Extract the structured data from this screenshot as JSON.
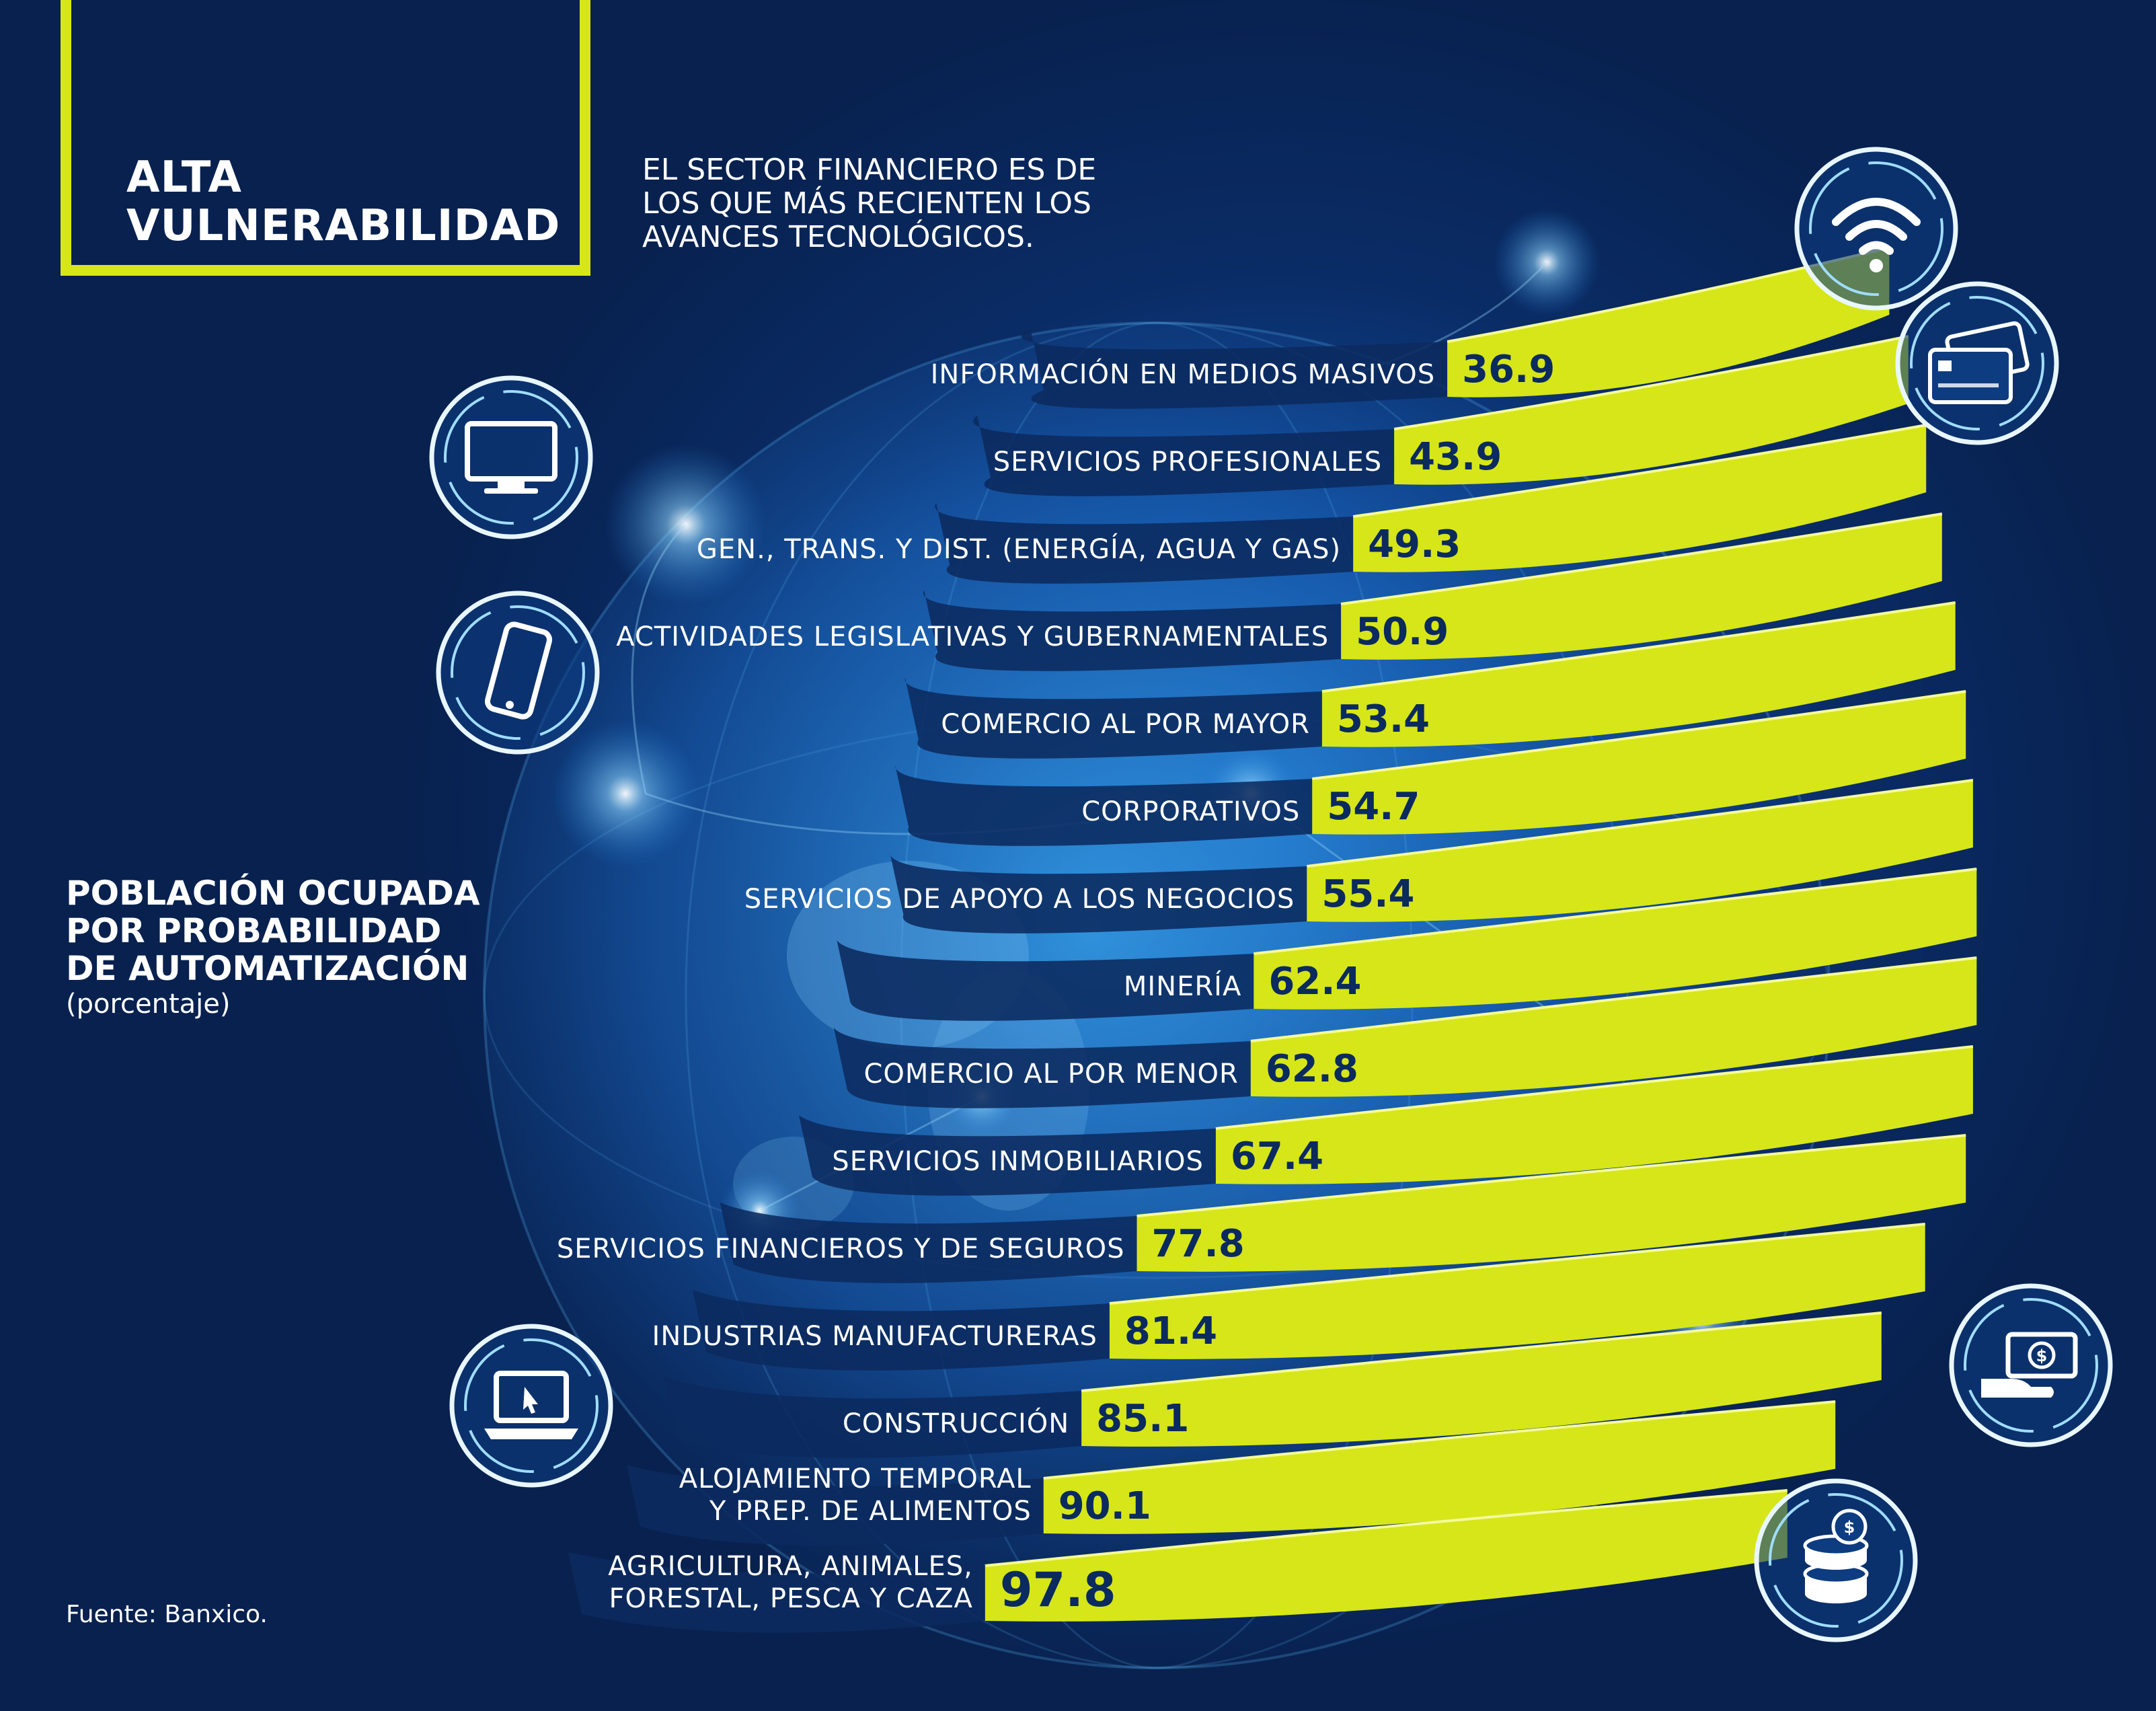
{
  "header": {
    "title_line1": "ALTA",
    "title_line2": "VULNERABILIDAD"
  },
  "note": {
    "line1": "EL SECTOR FINANCIERO ES DE",
    "line2": "LOS QUE MÁS RECIENTEN LOS",
    "line3": "AVANCES TECNOLÓGICOS."
  },
  "legend_block": {
    "line1": "POBLACIÓN OCUPADA",
    "line2": "POR PROBABILIDAD",
    "line3": "DE AUTOMATIZACIÓN",
    "unit": "(porcentaje)"
  },
  "source": "Fuente: Banxico.",
  "colors": {
    "accent": "#d6e619",
    "band_dark": "#0b2a5e",
    "value_text": "#0b2a5e",
    "background": "#0a2c66"
  },
  "icons": [
    "wifi-icon",
    "bank-card-icon",
    "monitor-icon",
    "smartphone-icon",
    "laptop-icon",
    "cash-hand-icon",
    "coins-icon"
  ],
  "chart_data": {
    "type": "bar",
    "title": "POBLACIÓN OCUPADA POR PROBABILIDAD DE AUTOMATIZACIÓN",
    "unit": "(porcentaje)",
    "categories": [
      [
        "INFORMACIÓN EN MEDIOS MASIVOS"
      ],
      [
        "SERVICIOS PROFESIONALES"
      ],
      [
        "GEN., TRANS. Y DIST. (ENERGÍA, AGUA Y GAS)"
      ],
      [
        "ACTIVIDADES LEGISLATIVAS Y GUBERNAMENTALES"
      ],
      [
        "COMERCIO AL POR MAYOR"
      ],
      [
        "CORPORATIVOS"
      ],
      [
        "SERVICIOS DE APOYO A LOS NEGOCIOS"
      ],
      [
        "MINERÍA"
      ],
      [
        "COMERCIO AL POR MENOR"
      ],
      [
        "SERVICIOS INMOBILIARIOS"
      ],
      [
        "SERVICIOS FINANCIEROS Y DE SEGUROS"
      ],
      [
        "INDUSTRIAS MANUFACTURERAS"
      ],
      [
        "CONSTRUCCIÓN"
      ],
      [
        "ALOJAMIENTO TEMPORAL",
        "Y PREP. DE ALIMENTOS"
      ],
      [
        "AGRICULTURA, ANIMALES,",
        "FORESTAL, PESCA Y CAZA"
      ]
    ],
    "values": [
      36.9,
      43.9,
      49.3,
      50.9,
      53.4,
      54.7,
      55.4,
      62.4,
      62.8,
      67.4,
      77.8,
      81.4,
      85.1,
      90.1,
      97.8
    ],
    "value_labels": [
      "36.9",
      "43.9",
      "49.3",
      "50.9",
      "53.4",
      "54.7",
      "55.4",
      "62.4",
      "62.8",
      "67.4",
      "77.8",
      "81.4",
      "85.1",
      "90.1",
      "97.8"
    ]
  }
}
